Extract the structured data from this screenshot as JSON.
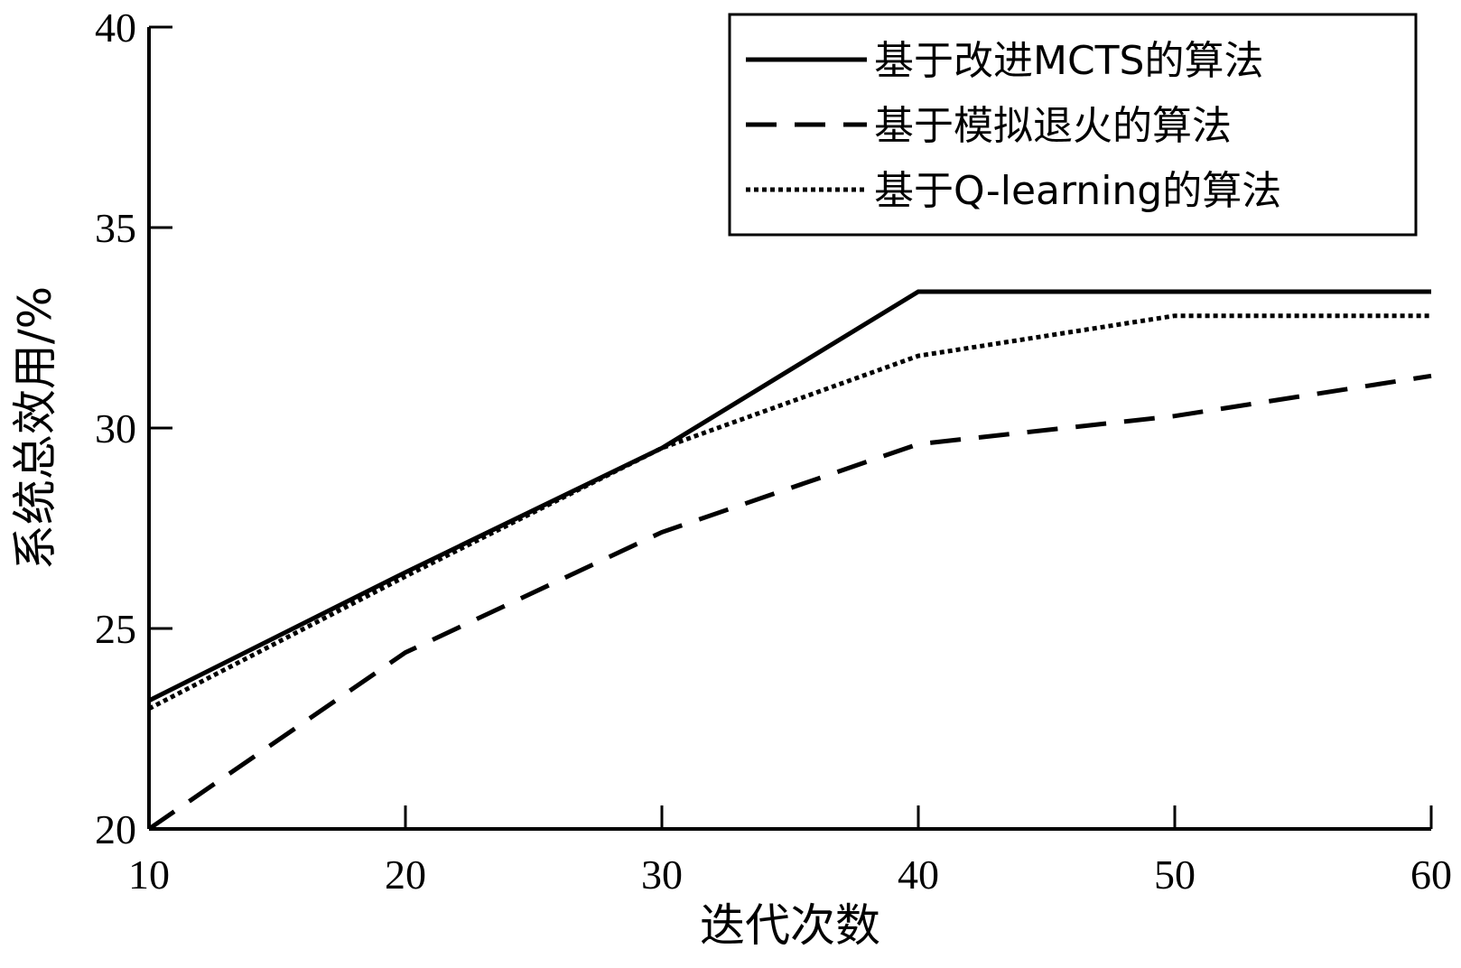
{
  "chart_data": {
    "type": "line",
    "title": "",
    "xlabel": "迭代次数",
    "ylabel": "系统总效用/%",
    "x": [
      10,
      20,
      30,
      40,
      50,
      60
    ],
    "xlim": [
      10,
      60
    ],
    "ylim": [
      20,
      40
    ],
    "xticks": [
      "10",
      "20",
      "30",
      "40",
      "50",
      "60"
    ],
    "yticks": [
      "20",
      "25",
      "30",
      "35",
      "40"
    ],
    "grid": false,
    "legend_position": "top-right",
    "series": [
      {
        "name": "基于改进MCTS的算法",
        "style": "solid",
        "color": "#000000",
        "values": [
          23.2,
          26.4,
          29.5,
          33.4,
          33.4,
          33.4
        ]
      },
      {
        "name": "基于模拟退火的算法",
        "style": "dashed",
        "color": "#000000",
        "values": [
          20.0,
          24.4,
          27.4,
          29.6,
          30.3,
          31.3
        ]
      },
      {
        "name": "基于Q-learning的算法",
        "style": "dotted",
        "color": "#000000",
        "values": [
          23.0,
          26.3,
          29.5,
          31.8,
          32.8,
          32.8
        ]
      }
    ]
  }
}
